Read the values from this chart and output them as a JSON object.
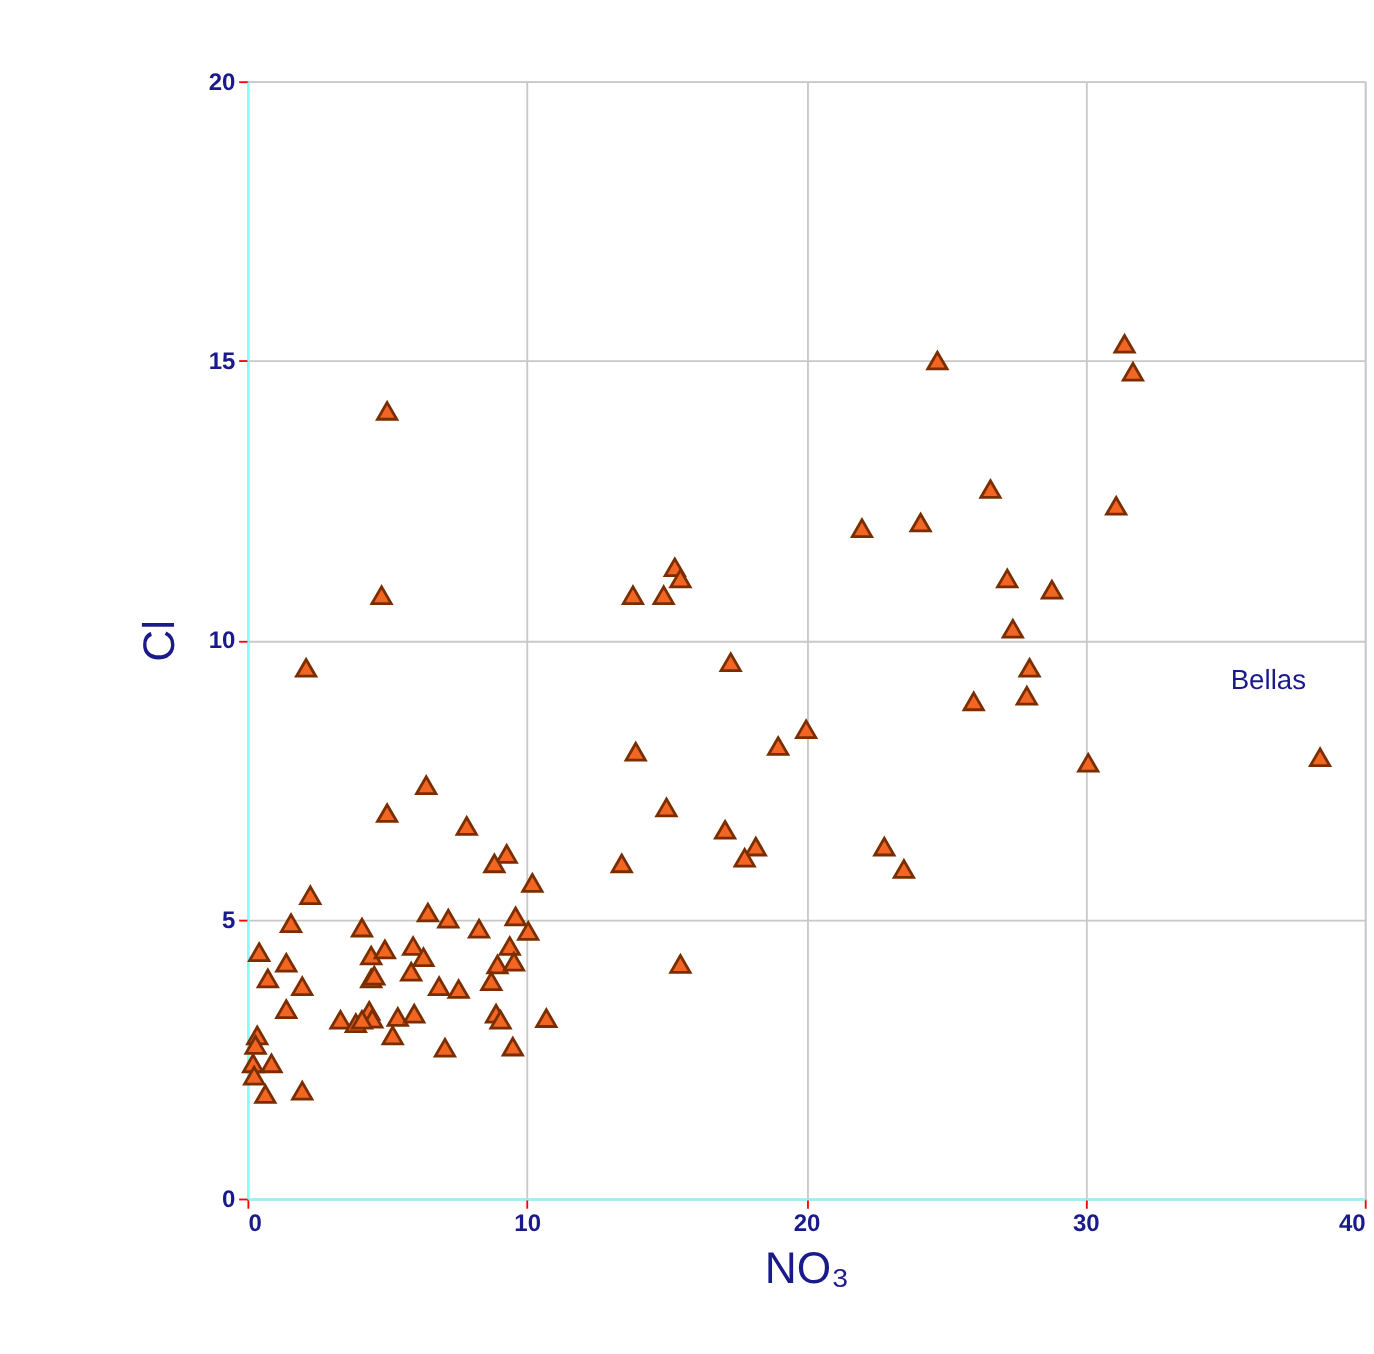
{
  "chart_data": {
    "type": "scatter",
    "xlabel": "NO₃",
    "ylabel": "Cl",
    "xlim": [
      0,
      40
    ],
    "xticks": [
      0,
      10,
      20,
      30,
      40
    ],
    "ylim": [
      0,
      20
    ],
    "yticks": [
      0,
      5,
      10,
      15,
      20
    ],
    "grid": true,
    "marker": "triangle",
    "annotations": [
      {
        "text": "Bellas",
        "x": 38.4,
        "y": 7.9
      }
    ],
    "series": [
      {
        "color": "#f26522",
        "x": [
          31.4,
          31.7,
          24.7,
          26.6,
          31.1,
          22.0,
          24.1,
          27.2,
          28.8,
          27.4,
          28.0,
          27.9,
          26.0,
          20.0,
          30.1,
          38.4,
          19.0,
          17.3,
          22.8,
          23.5,
          18.2,
          17.8,
          17.1,
          15.0,
          13.9,
          13.4,
          15.5,
          13.8,
          14.9,
          15.3,
          15.5,
          5.0,
          4.8,
          2.1,
          5.0,
          6.4,
          7.85,
          9.28,
          8.84,
          10.2,
          2.25,
          1.56,
          4.1,
          6.46,
          7.19,
          8.29,
          9.6,
          10.05,
          0.42,
          1.39,
          4.43,
          4.92,
          5.93,
          6.3,
          9.39,
          8.95,
          9.54,
          0.73,
          1.96,
          4.43,
          4.54,
          5.86,
          6.86,
          7.56,
          8.73,
          1.39,
          3.33,
          3.88,
          4.36,
          4.47,
          4.1,
          5.38,
          5.97,
          8.9,
          9.06,
          10.7,
          5.2,
          7.07,
          9.5,
          0.35,
          0.29,
          0.86,
          0.2,
          0.24,
          0.64,
          1.96
        ],
        "values": [
          15.3,
          14.8,
          15.0,
          12.7,
          12.4,
          12.0,
          12.1,
          11.1,
          10.9,
          10.2,
          9.5,
          9.0,
          8.9,
          8.4,
          7.8,
          7.9,
          8.1,
          9.6,
          6.3,
          5.9,
          6.3,
          6.1,
          6.6,
          7.0,
          8.0,
          6.0,
          4.2,
          10.8,
          10.8,
          11.3,
          11.1,
          14.1,
          10.8,
          9.5,
          6.9,
          7.4,
          6.67,
          6.17,
          6.0,
          5.65,
          5.43,
          4.93,
          4.85,
          5.12,
          5.01,
          4.83,
          5.05,
          4.79,
          4.41,
          4.22,
          4.35,
          4.46,
          4.52,
          4.32,
          4.52,
          4.19,
          4.24,
          3.94,
          3.8,
          3.94,
          3.99,
          4.06,
          3.8,
          3.75,
          3.89,
          3.39,
          3.2,
          3.14,
          3.36,
          3.22,
          3.2,
          3.25,
          3.31,
          3.31,
          3.2,
          3.23,
          2.92,
          2.7,
          2.72,
          2.92,
          2.75,
          2.42,
          2.42,
          2.2,
          1.87,
          1.93
        ]
      }
    ]
  }
}
